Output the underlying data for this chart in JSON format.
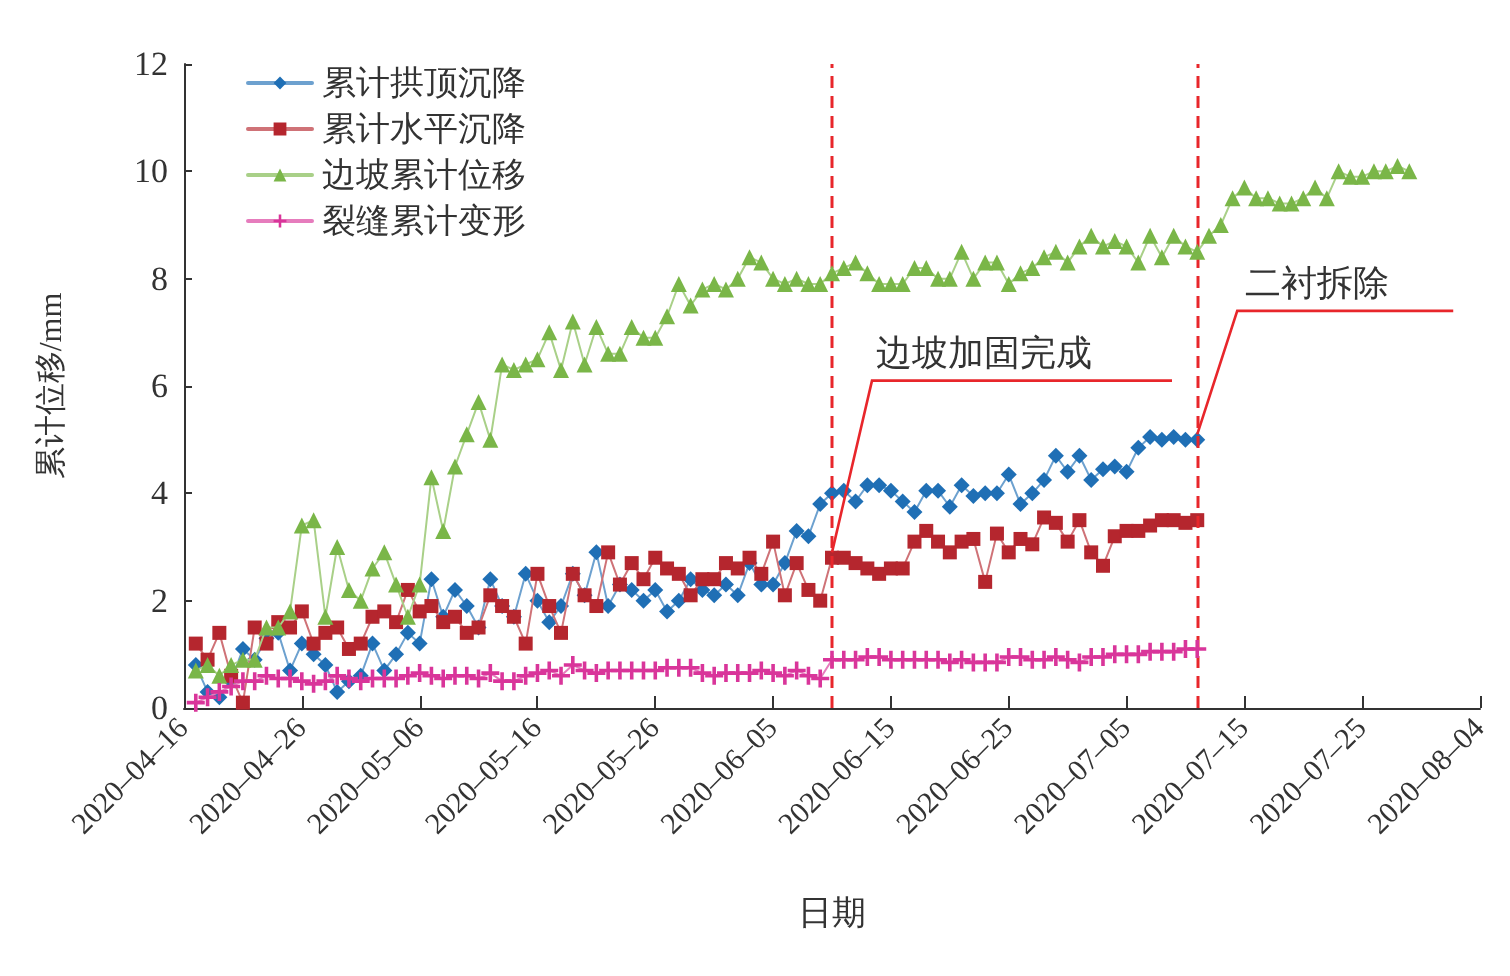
{
  "chart_data": {
    "type": "line",
    "xlabel": "日期",
    "ylabel": "累计位移/mm",
    "x": [
      "2020-04-17",
      "2020-04-18",
      "2020-04-19",
      "2020-04-20",
      "2020-04-21",
      "2020-04-22",
      "2020-04-23",
      "2020-04-24",
      "2020-04-25",
      "2020-04-26",
      "2020-04-27",
      "2020-04-28",
      "2020-04-29",
      "2020-04-30",
      "2020-05-01",
      "2020-05-02",
      "2020-05-03",
      "2020-05-04",
      "2020-05-05",
      "2020-05-06",
      "2020-05-07",
      "2020-05-08",
      "2020-05-09",
      "2020-05-10",
      "2020-05-11",
      "2020-05-12",
      "2020-05-13",
      "2020-05-14",
      "2020-05-15",
      "2020-05-16",
      "2020-05-17",
      "2020-05-18",
      "2020-05-19",
      "2020-05-20",
      "2020-05-21",
      "2020-05-22",
      "2020-05-23",
      "2020-05-24",
      "2020-05-25",
      "2020-05-26",
      "2020-05-27",
      "2020-05-28",
      "2020-05-29",
      "2020-05-30",
      "2020-05-31",
      "2020-06-01",
      "2020-06-02",
      "2020-06-03",
      "2020-06-04",
      "2020-06-05",
      "2020-06-06",
      "2020-06-07",
      "2020-06-08",
      "2020-06-09",
      "2020-06-10",
      "2020-06-11",
      "2020-06-12",
      "2020-06-13",
      "2020-06-14",
      "2020-06-15",
      "2020-06-16",
      "2020-06-17",
      "2020-06-18",
      "2020-06-19",
      "2020-06-20",
      "2020-06-21",
      "2020-06-22",
      "2020-06-23",
      "2020-06-24",
      "2020-06-25",
      "2020-06-26",
      "2020-06-27",
      "2020-06-28",
      "2020-06-29",
      "2020-06-30",
      "2020-07-01",
      "2020-07-02",
      "2020-07-03",
      "2020-07-04",
      "2020-07-05",
      "2020-07-06",
      "2020-07-07",
      "2020-07-08",
      "2020-07-09",
      "2020-07-10",
      "2020-07-11",
      "2020-07-12",
      "2020-07-13",
      "2020-07-14",
      "2020-07-15",
      "2020-07-16",
      "2020-07-17",
      "2020-07-18",
      "2020-07-19",
      "2020-07-20",
      "2020-07-21",
      "2020-07-22",
      "2020-07-23",
      "2020-07-24",
      "2020-07-25",
      "2020-07-26",
      "2020-07-27",
      "2020-07-28",
      "2020-07-29"
    ],
    "xlim": [
      "2020-04-16",
      "2020-08-04"
    ],
    "xticks": [
      {
        "value": "2020-04-16",
        "label": "2020–04–16"
      },
      {
        "value": "2020-04-26",
        "label": "2020–04–26"
      },
      {
        "value": "2020-05-06",
        "label": "2020–05–06"
      },
      {
        "value": "2020-05-16",
        "label": "2020–05–16"
      },
      {
        "value": "2020-05-26",
        "label": "2020–05–26"
      },
      {
        "value": "2020-06-05",
        "label": "2020–06–05"
      },
      {
        "value": "2020-06-15",
        "label": "2020–06–15"
      },
      {
        "value": "2020-06-25",
        "label": "2020–06–25"
      },
      {
        "value": "2020-07-05",
        "label": "2020–07–05"
      },
      {
        "value": "2020-07-15",
        "label": "2020–07–15"
      },
      {
        "value": "2020-07-25",
        "label": "2020–07–25"
      },
      {
        "value": "2020-08-04",
        "label": "2020–08–04"
      }
    ],
    "ylim": [
      0,
      12
    ],
    "yticks": [
      0,
      2,
      4,
      6,
      8,
      10,
      12
    ],
    "grid": false,
    "legend": "top left",
    "series": [
      {
        "name": "累计拱顶沉降",
        "color": "#1f6fb5",
        "marker": "diamond",
        "values": [
          0.8,
          0.3,
          0.2,
          0.5,
          1.1,
          0.9,
          1.3,
          1.4,
          0.7,
          1.2,
          1.0,
          0.8,
          0.3,
          0.5,
          0.6,
          1.2,
          0.7,
          1.0,
          1.4,
          1.2,
          2.4,
          1.7,
          2.2,
          1.9,
          1.5,
          2.4,
          1.9,
          1.7,
          2.5,
          2.0,
          1.6,
          1.9,
          2.5,
          2.1,
          2.9,
          1.9,
          2.3,
          2.2,
          2.0,
          2.2,
          1.8,
          2.0,
          2.4,
          2.2,
          2.1,
          2.3,
          2.1,
          2.7,
          2.3,
          2.3,
          2.7,
          3.3,
          3.2,
          3.8,
          4.0,
          4.05,
          3.85,
          4.15,
          4.15,
          4.05,
          3.85,
          3.65,
          4.05,
          4.05,
          3.75,
          4.15,
          3.95,
          4.0,
          4.0,
          4.35,
          3.8,
          4.0,
          4.25,
          4.7,
          4.4,
          4.7,
          4.25,
          4.45,
          4.5,
          4.4,
          4.85,
          5.05,
          5.0,
          5.05,
          5.0,
          5.0,
          null,
          null,
          null,
          null,
          null,
          null,
          null,
          null,
          null,
          null,
          null,
          null,
          null,
          null,
          null,
          null,
          null,
          null
        ]
      },
      {
        "name": "累计水平沉降",
        "color": "#b5262e",
        "marker": "square",
        "values": [
          1.2,
          0.9,
          1.4,
          0.6,
          0.1,
          1.5,
          1.2,
          1.6,
          1.5,
          1.8,
          1.2,
          1.4,
          1.5,
          1.1,
          1.2,
          1.7,
          1.8,
          1.6,
          2.2,
          1.8,
          1.9,
          1.6,
          1.7,
          1.4,
          1.5,
          2.1,
          1.9,
          1.7,
          1.2,
          2.5,
          1.9,
          1.4,
          2.5,
          2.1,
          1.9,
          2.9,
          2.3,
          2.7,
          2.4,
          2.8,
          2.6,
          2.5,
          2.1,
          2.4,
          2.4,
          2.7,
          2.6,
          2.8,
          2.5,
          3.1,
          2.1,
          2.7,
          2.2,
          2.0,
          2.8,
          2.8,
          2.7,
          2.6,
          2.5,
          2.6,
          2.6,
          3.1,
          3.3,
          3.1,
          2.9,
          3.1,
          3.15,
          2.35,
          3.25,
          2.9,
          3.15,
          3.05,
          3.55,
          3.45,
          3.1,
          3.5,
          2.9,
          2.65,
          3.2,
          3.3,
          3.3,
          3.4,
          3.5,
          3.5,
          3.45,
          3.5,
          null,
          null,
          null,
          null,
          null,
          null,
          null,
          null,
          null,
          null,
          null,
          null,
          null,
          null,
          null,
          null,
          null,
          null
        ]
      },
      {
        "name": "边坡累计位移",
        "color": "#7ab648",
        "marker": "triangle",
        "values": [
          0.7,
          0.8,
          0.6,
          0.8,
          0.9,
          0.9,
          1.5,
          1.5,
          1.8,
          3.4,
          3.5,
          1.7,
          3.0,
          2.2,
          2.0,
          2.6,
          2.9,
          2.3,
          1.7,
          2.3,
          4.3,
          3.3,
          4.5,
          5.1,
          5.7,
          5.0,
          6.4,
          6.3,
          6.4,
          6.5,
          7.0,
          6.3,
          7.2,
          6.4,
          7.1,
          6.6,
          6.6,
          7.1,
          6.9,
          6.9,
          7.3,
          7.9,
          7.5,
          7.8,
          7.9,
          7.8,
          8.0,
          8.4,
          8.3,
          8.0,
          7.9,
          8.0,
          7.9,
          7.9,
          8.1,
          8.2,
          8.3,
          8.1,
          7.9,
          7.9,
          7.9,
          8.2,
          8.2,
          8.0,
          8.0,
          8.5,
          8.0,
          8.3,
          8.3,
          7.9,
          8.1,
          8.2,
          8.4,
          8.5,
          8.3,
          8.6,
          8.8,
          8.6,
          8.7,
          8.6,
          8.3,
          8.8,
          8.4,
          8.8,
          8.6,
          8.5,
          8.8,
          9.0,
          9.5,
          9.7,
          9.5,
          9.5,
          9.4,
          9.4,
          9.5,
          9.7,
          9.5,
          10.0,
          9.9,
          9.9,
          10.0,
          10.0,
          10.1,
          10.0
        ]
      },
      {
        "name": "裂缝累计变形",
        "color": "#d9359a",
        "marker": "cross",
        "values": [
          0.1,
          0.2,
          0.3,
          0.4,
          0.5,
          0.5,
          0.6,
          0.55,
          0.55,
          0.5,
          0.45,
          0.5,
          0.6,
          0.55,
          0.5,
          0.55,
          0.55,
          0.55,
          0.6,
          0.65,
          0.6,
          0.55,
          0.6,
          0.6,
          0.55,
          0.65,
          0.5,
          0.5,
          0.6,
          0.65,
          0.7,
          0.6,
          0.8,
          0.7,
          0.65,
          0.7,
          0.7,
          0.7,
          0.7,
          0.7,
          0.75,
          0.75,
          0.75,
          0.65,
          0.6,
          0.65,
          0.65,
          0.65,
          0.7,
          0.65,
          0.6,
          0.7,
          0.6,
          0.55,
          0.9,
          0.9,
          0.9,
          0.95,
          0.95,
          0.9,
          0.9,
          0.9,
          0.9,
          0.9,
          0.85,
          0.9,
          0.85,
          0.85,
          0.85,
          0.95,
          0.95,
          0.9,
          0.9,
          0.95,
          0.9,
          0.85,
          0.95,
          0.95,
          1.0,
          1.0,
          1.0,
          1.05,
          1.05,
          1.05,
          1.1,
          1.1,
          null,
          null,
          null,
          null,
          null,
          null,
          null,
          null,
          null,
          null,
          null,
          null,
          null,
          null,
          null,
          null,
          null,
          null
        ]
      }
    ],
    "ref_lines": [
      {
        "axis": "x",
        "value": "2020-06-10",
        "label": "边坡加固完成",
        "color": "#e8262b",
        "line_style": "dashed"
      },
      {
        "axis": "x",
        "value": "2020-07-11",
        "label": "二衬拆除",
        "color": "#e8262b",
        "line_style": "dashed"
      }
    ]
  }
}
